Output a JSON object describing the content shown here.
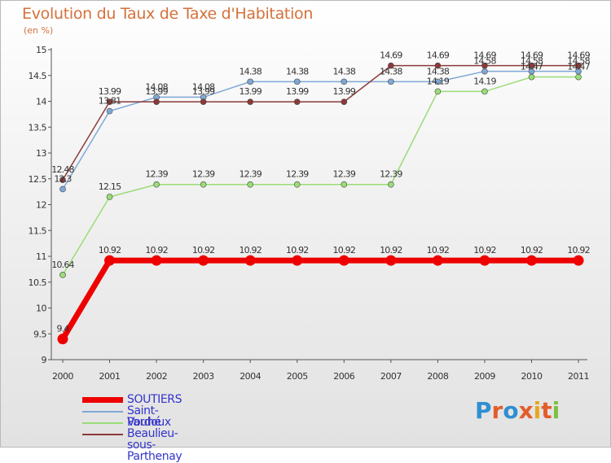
{
  "title": "Evolution du Taux de Taxe d'Habitation",
  "subtitle": "(en %)",
  "logo": {
    "letters": [
      "P",
      "r",
      "o",
      "x",
      "i",
      "t",
      "i"
    ],
    "colors": [
      "#2f8fd1",
      "#e35d2a",
      "#2f8fd1",
      "#e35d2a",
      "#e6a820",
      "#e35d2a",
      "#7bc142"
    ]
  },
  "chart_data": {
    "type": "line",
    "title": "Evolution du Taux de Taxe d'Habitation",
    "ylabel": "(en %)",
    "xlabel": "",
    "categories": [
      "2000",
      "2001",
      "2002",
      "2003",
      "2004",
      "2005",
      "2006",
      "2007",
      "2008",
      "2009",
      "2010",
      "2011"
    ],
    "ylim": [
      9,
      15
    ],
    "yticks": [
      "9",
      "9.5",
      "10",
      "10.5",
      "11",
      "11.5",
      "12",
      "12.5",
      "13",
      "13.5",
      "14",
      "14.5",
      "15"
    ],
    "grid": false,
    "series": [
      {
        "name": "SOUTIERS",
        "color": "#ee0000",
        "values": [
          9.4,
          10.92,
          10.92,
          10.92,
          10.92,
          10.92,
          10.92,
          10.92,
          10.92,
          10.92,
          10.92,
          10.92
        ],
        "labels": [
          "9.4",
          "10.92",
          "10.92",
          "10.92",
          "10.92",
          "10.92",
          "10.92",
          "10.92",
          "10.92",
          "10.92",
          "10.92",
          "10.92"
        ]
      },
      {
        "name": "Saint-Pardoux",
        "color": "#7fa8d6",
        "values": [
          12.3,
          13.81,
          14.08,
          14.08,
          14.38,
          14.38,
          14.38,
          14.38,
          14.38,
          14.58,
          14.58,
          14.58
        ],
        "labels": [
          "12.3",
          "13.81",
          "14.08",
          "14.08",
          "14.38",
          "14.38",
          "14.38",
          "14.38",
          "14.38",
          "14.58",
          "14.58",
          "14.58"
        ]
      },
      {
        "name": "Vouhé",
        "color": "#99dd77",
        "values": [
          10.64,
          12.15,
          12.39,
          12.39,
          12.39,
          12.39,
          12.39,
          12.39,
          14.19,
          14.19,
          14.47,
          14.47
        ],
        "labels": [
          "10.64",
          "12.15",
          "12.39",
          "12.39",
          "12.39",
          "12.39",
          "12.39",
          "12.39",
          "14.19",
          "14.19",
          "14.47",
          "14.47"
        ]
      },
      {
        "name": "Beaulieu-sous-Parthenay",
        "color": "#8b3a3a",
        "values": [
          12.48,
          13.99,
          13.99,
          13.99,
          13.99,
          13.99,
          13.99,
          14.69,
          14.69,
          14.69,
          14.69,
          14.69
        ],
        "labels": [
          "12.48",
          "13.99",
          "13.99",
          "13.99",
          "13.99",
          "13.99",
          "13.99",
          "14.69",
          "14.69",
          "14.69",
          "14.69",
          "14.69"
        ]
      }
    ]
  }
}
